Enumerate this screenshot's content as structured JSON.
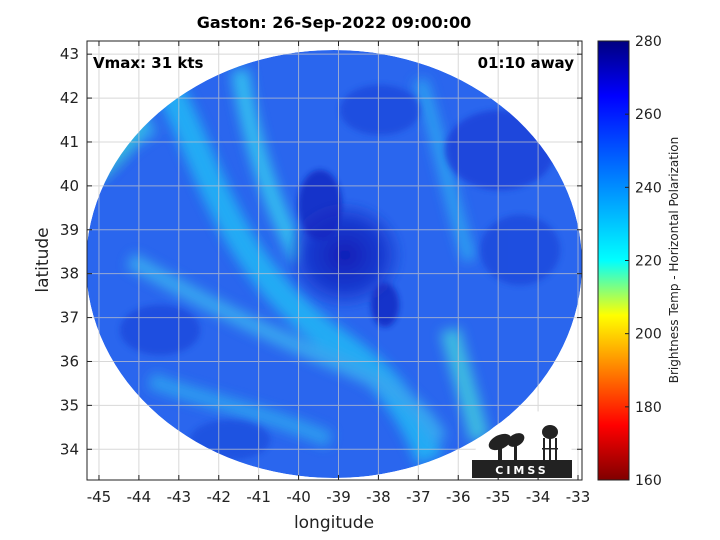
{
  "title": "Gaston: 26-Sep-2022 09:00:00",
  "annotations": {
    "vmax": "Vmax: 31 kts",
    "away": "01:10 away"
  },
  "axes": {
    "xlabel": "longitude",
    "ylabel": "latitude",
    "xlim": [
      -45.3,
      -32.9
    ],
    "ylim": [
      33.3,
      43.3
    ],
    "xticks": [
      -45,
      -44,
      -43,
      -42,
      -41,
      -40,
      -39,
      -38,
      -37,
      -36,
      -35,
      -34,
      -33
    ],
    "yticks": [
      34,
      35,
      36,
      37,
      38,
      39,
      40,
      41,
      42,
      43
    ],
    "grid": true
  },
  "colorbar": {
    "label": "Brightness Temp - Horizontal Polarization",
    "range": [
      160,
      280
    ],
    "ticks": [
      160,
      180,
      200,
      220,
      240,
      260,
      280
    ],
    "colormap": "jet"
  },
  "swath": {
    "center": [
      -39.1,
      38.3
    ],
    "eye_lon_lat": [
      -38.8,
      38.3
    ],
    "background_temp_range": [
      245,
      262
    ],
    "cold_bands_temp": 235,
    "northwest_edge_temp": 218
  },
  "logo": {
    "text": "CIMSS"
  }
}
